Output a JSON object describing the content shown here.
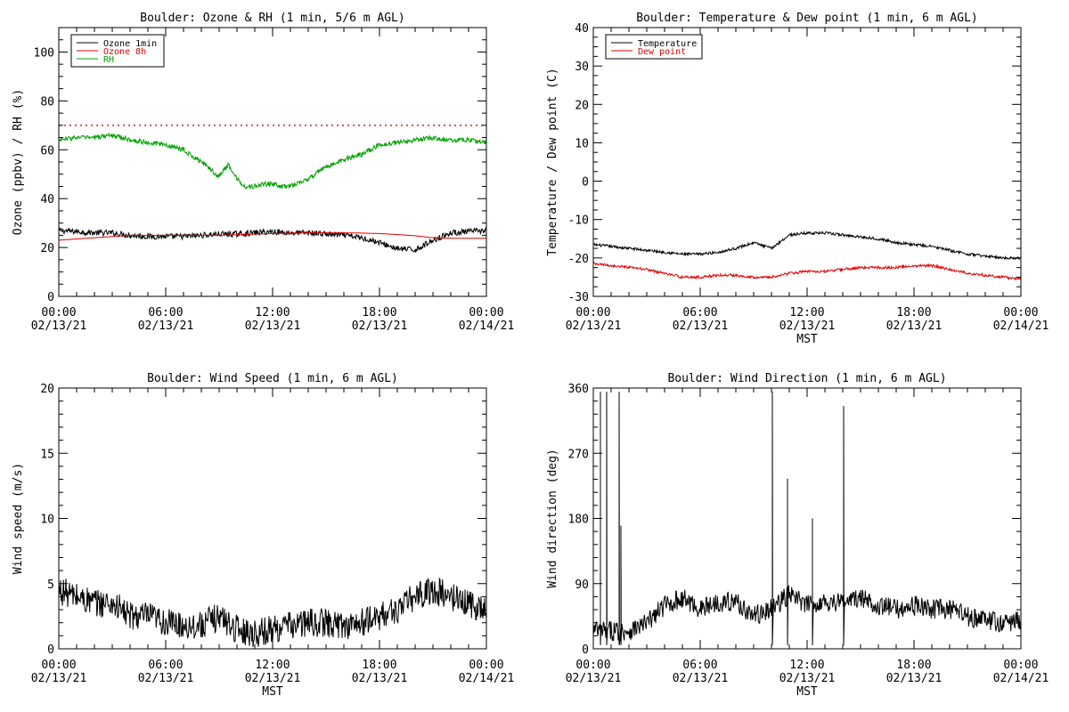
{
  "colors": {
    "ozone_1min": "#000000",
    "ozone_8h": "#e00000",
    "rh": "#00a000",
    "temperature": "#000000",
    "dew_point": "#e00000",
    "wind": "#000000",
    "standard_line": "#e00000"
  },
  "chart_data": [
    {
      "id": "ozone-rh",
      "type": "line",
      "title": "Boulder: Ozone & RH (1 min, 5/6 m AGL)",
      "xlabel": "",
      "ylabel": "Ozone (ppbv) / RH (%)",
      "xlim_hours": [
        0,
        24
      ],
      "ylim": [
        0,
        110
      ],
      "yticks": [
        0,
        20,
        40,
        60,
        80,
        100
      ],
      "xtick_labels": [
        [
          "00:00",
          "02/13/21"
        ],
        [
          "06:00",
          "02/13/21"
        ],
        [
          "12:00",
          "02/13/21"
        ],
        [
          "18:00",
          "02/13/21"
        ],
        [
          "00:00",
          "02/14/21"
        ]
      ],
      "legend": "top-left",
      "reference_line": {
        "y": 70,
        "style": "dotted",
        "color": "#e00000"
      },
      "series": [
        {
          "name": "Ozone 1min",
          "color": "#000000",
          "x": [
            0,
            1,
            2,
            3,
            4,
            5,
            6,
            7,
            8,
            9,
            10,
            11,
            12,
            13,
            14,
            15,
            16,
            17,
            18,
            19,
            20,
            21,
            22,
            23,
            24
          ],
          "y": [
            27,
            26.5,
            26,
            26,
            25,
            24.5,
            24.5,
            24.5,
            25,
            25.5,
            25.5,
            26,
            26.5,
            26,
            26,
            25.5,
            25,
            24,
            22,
            19.5,
            19,
            23,
            26,
            26.5,
            27
          ]
        },
        {
          "name": "Ozone 8h",
          "color": "#e00000",
          "x": [
            0,
            1,
            2,
            3,
            4,
            5,
            6,
            7,
            8,
            9,
            10,
            11,
            12,
            13,
            14,
            15,
            16,
            17,
            18,
            19,
            20,
            21,
            22,
            23,
            24
          ],
          "y": [
            23,
            23.5,
            24,
            24.5,
            25,
            25,
            25,
            25,
            25,
            25,
            25.2,
            25.5,
            25.7,
            25.9,
            26,
            26,
            26,
            25.9,
            25.7,
            25.3,
            24.8,
            24,
            23.8,
            23.8,
            23.8
          ]
        },
        {
          "name": "RH",
          "color": "#00a000",
          "x": [
            0,
            1,
            2,
            3,
            4,
            5,
            6,
            7,
            8,
            9,
            9.5,
            10,
            10.5,
            11,
            11.5,
            12,
            12.5,
            13,
            14,
            15,
            16,
            17,
            18,
            19,
            20,
            21,
            22,
            23,
            24
          ],
          "y": [
            64,
            65,
            65,
            66,
            64,
            63,
            62,
            60,
            55,
            49,
            54,
            48,
            45,
            45,
            46,
            46,
            45,
            45,
            48,
            53,
            56,
            58,
            62,
            63,
            64,
            65,
            64,
            64,
            63
          ]
        }
      ]
    },
    {
      "id": "temp-dew",
      "type": "line",
      "title": "Boulder: Temperature & Dew point (1 min, 6 m AGL)",
      "xlabel": "MST",
      "ylabel": "Temperature / Dew point (C)",
      "xlim_hours": [
        0,
        24
      ],
      "ylim": [
        -30,
        40
      ],
      "yticks": [
        -30,
        -20,
        -10,
        0,
        10,
        20,
        30,
        40
      ],
      "xtick_labels": [
        [
          "00:00",
          "02/13/21"
        ],
        [
          "06:00",
          "02/13/21"
        ],
        [
          "12:00",
          "02/13/21"
        ],
        [
          "18:00",
          "02/13/21"
        ],
        [
          "00:00",
          "02/14/21"
        ]
      ],
      "legend": "top-left",
      "series": [
        {
          "name": "Temperature",
          "color": "#000000",
          "x": [
            0,
            1,
            2,
            3,
            4,
            5,
            6,
            7,
            8,
            9,
            10,
            11,
            12,
            13,
            14,
            15,
            16,
            17,
            18,
            19,
            20,
            21,
            22,
            23,
            24
          ],
          "y": [
            -16.5,
            -17,
            -17.5,
            -18,
            -18.5,
            -19,
            -19,
            -18.5,
            -17.5,
            -16,
            -17.5,
            -14,
            -13.5,
            -13.5,
            -14,
            -14.5,
            -15,
            -16,
            -16.5,
            -17,
            -18,
            -19,
            -19.5,
            -20,
            -20
          ]
        },
        {
          "name": "Dew point",
          "color": "#e00000",
          "x": [
            0,
            1,
            2,
            3,
            4,
            5,
            6,
            7,
            8,
            9,
            10,
            11,
            12,
            13,
            14,
            15,
            16,
            17,
            18,
            19,
            20,
            21,
            22,
            23,
            24
          ],
          "y": [
            -21.5,
            -22,
            -22.5,
            -23,
            -24,
            -25,
            -25,
            -24.5,
            -24.5,
            -25,
            -25,
            -24,
            -23.5,
            -23.5,
            -23,
            -22.5,
            -22.5,
            -22.5,
            -22,
            -22,
            -23,
            -24,
            -24.5,
            -25,
            -25.5
          ]
        }
      ]
    },
    {
      "id": "wind-speed",
      "type": "line",
      "title": "Boulder: Wind Speed (1 min, 6 m AGL)",
      "xlabel": "MST",
      "ylabel": "Wind speed (m/s)",
      "xlim_hours": [
        0,
        24
      ],
      "ylim": [
        0,
        20
      ],
      "yticks": [
        0,
        5,
        10,
        15,
        20
      ],
      "xtick_labels": [
        [
          "00:00",
          "02/13/21"
        ],
        [
          "06:00",
          "02/13/21"
        ],
        [
          "12:00",
          "02/13/21"
        ],
        [
          "18:00",
          "02/13/21"
        ],
        [
          "00:00",
          "02/14/21"
        ]
      ],
      "series": [
        {
          "name": "",
          "color": "#000000",
          "x": [
            0,
            1,
            2,
            3,
            4,
            5,
            6,
            7,
            8,
            9,
            10,
            11,
            12,
            13,
            14,
            15,
            16,
            17,
            18,
            19,
            20,
            21,
            22,
            23,
            24
          ],
          "y": [
            4.5,
            4,
            3.5,
            3.5,
            2.5,
            2.5,
            2,
            1.8,
            1.8,
            2.5,
            1.5,
            1.2,
            1.5,
            1.8,
            2,
            2,
            1.8,
            2,
            2.5,
            3,
            4,
            4.5,
            4,
            3.5,
            3
          ]
        }
      ]
    },
    {
      "id": "wind-dir",
      "type": "line",
      "title": "Boulder: Wind Direction (1 min, 6 m AGL)",
      "xlabel": "MST",
      "ylabel": "Wind direction (deg)",
      "xlim_hours": [
        0,
        24
      ],
      "ylim": [
        0,
        360
      ],
      "yticks": [
        0,
        90,
        180,
        270,
        360
      ],
      "xtick_labels": [
        [
          "00:00",
          "02/13/21"
        ],
        [
          "06:00",
          "02/13/21"
        ],
        [
          "12:00",
          "02/13/21"
        ],
        [
          "18:00",
          "02/13/21"
        ],
        [
          "00:00",
          "02/14/21"
        ]
      ],
      "spikes": [
        {
          "x": 0.4,
          "y": 355
        },
        {
          "x": 0.75,
          "y": 355
        },
        {
          "x": 1.45,
          "y": 355
        },
        {
          "x": 1.55,
          "y": 170
        },
        {
          "x": 10.05,
          "y": 355
        },
        {
          "x": 10.9,
          "y": 235
        },
        {
          "x": 12.3,
          "y": 180
        },
        {
          "x": 14.05,
          "y": 335
        }
      ],
      "series": [
        {
          "name": "",
          "color": "#000000",
          "x": [
            0,
            1,
            2,
            3,
            4,
            5,
            6,
            7,
            8,
            9,
            10,
            11,
            12,
            13,
            14,
            15,
            16,
            17,
            18,
            19,
            20,
            21,
            22,
            23,
            24
          ],
          "y": [
            25,
            25,
            25,
            35,
            60,
            70,
            55,
            65,
            65,
            45,
            55,
            75,
            60,
            65,
            65,
            70,
            60,
            55,
            60,
            55,
            55,
            45,
            40,
            35,
            40
          ]
        }
      ]
    }
  ]
}
